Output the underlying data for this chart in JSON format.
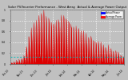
{
  "title": "Solar PV/Inverter Performance - West Array  Actual & Average Power Output",
  "bg_color": "#c0c0c0",
  "plot_bg_color": "#c0c0c0",
  "fill_color": "#dd0000",
  "avg_line_color": "#00bbbb",
  "grid_color": "#ffffff",
  "legend_color_actual": "#0000ff",
  "legend_color_avg": "#ff0000",
  "ylim": [
    0,
    1.0
  ],
  "avg_level": 0.13,
  "day_peaks": [
    0.03,
    0.04,
    0.06,
    0.08,
    0.1,
    0.18,
    0.32,
    0.52,
    0.68,
    0.75,
    0.82,
    0.9,
    0.98,
    0.92,
    0.88,
    0.85,
    0.8,
    0.78,
    0.82,
    0.85,
    0.88,
    0.9,
    0.86,
    0.8,
    0.75,
    0.7,
    0.68,
    0.65,
    0.62,
    0.58,
    0.55,
    0.5,
    0.48,
    0.45,
    0.42,
    0.4,
    0.38,
    0.35,
    0.32,
    0.3,
    0.28,
    0.25,
    0.22,
    0.2,
    0.18,
    0.15
  ],
  "samples_per_day": 8,
  "noise_scale": 0.05,
  "seed": 7
}
